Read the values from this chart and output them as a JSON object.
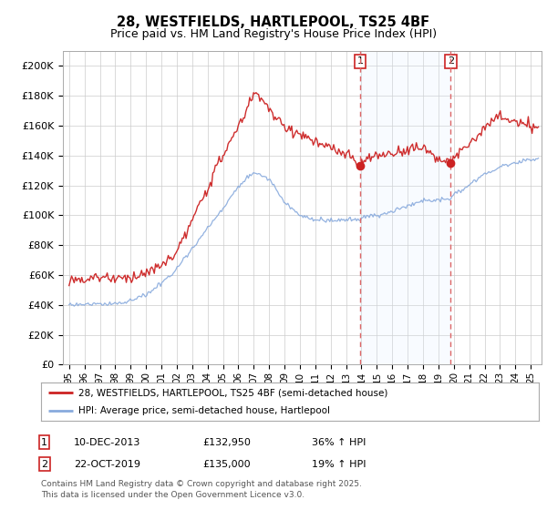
{
  "title": "28, WESTFIELDS, HARTLEPOOL, TS25 4BF",
  "subtitle": "Price paid vs. HM Land Registry's House Price Index (HPI)",
  "red_label": "28, WESTFIELDS, HARTLEPOOL, TS25 4BF (semi-detached house)",
  "blue_label": "HPI: Average price, semi-detached house, Hartlepool",
  "red_color": "#cc2222",
  "blue_color": "#88aadd",
  "vline_color": "#dd6666",
  "shade_color": "#ddeeff",
  "marker1_year": 2013.92,
  "marker2_year": 2019.8,
  "marker1_price": 132950,
  "marker2_price": 135000,
  "annotation1": [
    "1",
    "10-DEC-2013",
    "£132,950",
    "36% ↑ HPI"
  ],
  "annotation2": [
    "2",
    "22-OCT-2019",
    "£135,000",
    "19% ↑ HPI"
  ],
  "footer": "Contains HM Land Registry data © Crown copyright and database right 2025.\nThis data is licensed under the Open Government Licence v3.0.",
  "ylim": [
    0,
    210000
  ],
  "yticks": [
    0,
    20000,
    40000,
    60000,
    80000,
    100000,
    120000,
    140000,
    160000,
    180000,
    200000
  ],
  "ytick_labels": [
    "£0",
    "£20K",
    "£40K",
    "£60K",
    "£80K",
    "£100K",
    "£120K",
    "£140K",
    "£160K",
    "£180K",
    "£200K"
  ],
  "xlim_left": 1994.6,
  "xlim_right": 2025.7,
  "background_color": "#ffffff",
  "grid_color": "#cccccc"
}
